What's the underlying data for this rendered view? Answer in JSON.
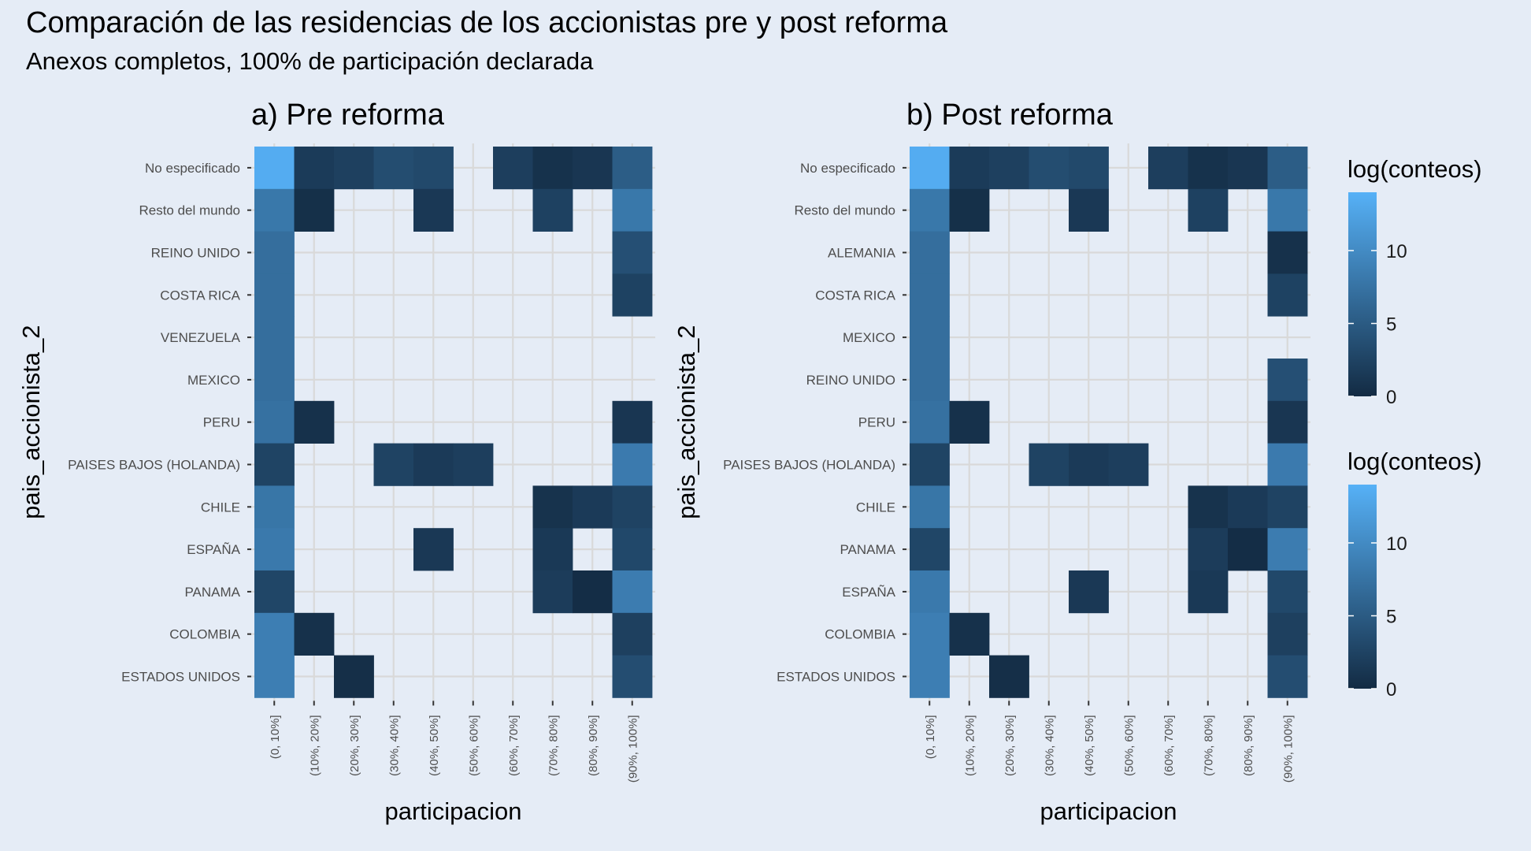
{
  "title": "Comparación de las residencias de los accionistas pre y post reforma",
  "subtitle": "Anexos completos, 100% de participación declarada",
  "chart_data": [
    {
      "type": "heatmap",
      "title": "a) Pre reforma",
      "xlabel": "participacion",
      "ylabel": "pais_accionista_2",
      "x": [
        "(0, 10%]",
        "(10%, 20%]",
        "(20%, 30%]",
        "(30%, 40%]",
        "(40%, 50%]",
        "(50%, 60%]",
        "(60%, 70%]",
        "(70%, 80%]",
        "(80%, 90%]",
        "(90%, 100%]"
      ],
      "y": [
        "No especificado",
        "Resto del mundo",
        "REINO UNIDO",
        "COSTA RICA",
        "VENEZUELA",
        "MEXICO",
        "PERU",
        "PAISES BAJOS (HOLANDA)",
        "CHILE",
        "ESPAÑA",
        "PANAMA",
        "COLOMBIA",
        "ESTADOS UNIDOS"
      ],
      "values": [
        [
          13.5,
          1.7,
          2.2,
          3.5,
          3.1,
          null,
          2.0,
          0.7,
          1.2,
          5.2
        ],
        [
          8.0,
          0.5,
          null,
          null,
          1.4,
          null,
          null,
          2.3,
          null,
          8.0
        ],
        [
          7.0,
          null,
          null,
          null,
          null,
          null,
          null,
          null,
          null,
          3.8
        ],
        [
          7.0,
          null,
          null,
          null,
          null,
          null,
          null,
          null,
          null,
          2.4
        ],
        [
          7.0,
          null,
          null,
          null,
          null,
          null,
          null,
          null,
          null,
          null
        ],
        [
          7.0,
          null,
          null,
          null,
          null,
          null,
          null,
          null,
          null,
          null
        ],
        [
          7.3,
          0.6,
          null,
          null,
          null,
          null,
          null,
          null,
          null,
          1.2
        ],
        [
          2.6,
          null,
          null,
          2.5,
          1.6,
          2.0,
          null,
          null,
          null,
          8.3
        ],
        [
          7.8,
          null,
          null,
          null,
          null,
          null,
          null,
          0.8,
          1.6,
          2.5
        ],
        [
          8.2,
          null,
          null,
          null,
          1.4,
          null,
          null,
          1.5,
          null,
          3.0
        ],
        [
          2.8,
          null,
          null,
          null,
          null,
          null,
          null,
          1.8,
          0.2,
          8.5
        ],
        [
          8.7,
          0.6,
          null,
          null,
          null,
          null,
          null,
          null,
          null,
          2.2
        ],
        [
          8.7,
          null,
          0.4,
          null,
          null,
          null,
          null,
          null,
          null,
          3.6
        ]
      ],
      "colorbar": {
        "label": "log(conteos)",
        "ticks": [
          0,
          5,
          10
        ],
        "range": [
          0,
          14
        ]
      }
    },
    {
      "type": "heatmap",
      "title": "b) Post reforma",
      "xlabel": "participacion",
      "ylabel": "pais_accionista_2",
      "x": [
        "(0, 10%]",
        "(10%, 20%]",
        "(20%, 30%]",
        "(30%, 40%]",
        "(40%, 50%]",
        "(50%, 60%]",
        "(60%, 70%]",
        "(70%, 80%]",
        "(80%, 90%]",
        "(90%, 100%]"
      ],
      "y": [
        "No especificado",
        "Resto del mundo",
        "ALEMANIA",
        "COSTA RICA",
        "MEXICO",
        "REINO UNIDO",
        "PERU",
        "PAISES BAJOS (HOLANDA)",
        "CHILE",
        "PANAMA",
        "ESPAÑA",
        "COLOMBIA",
        "ESTADOS UNIDOS"
      ],
      "values": [
        [
          13.5,
          1.7,
          2.2,
          3.5,
          3.1,
          null,
          2.0,
          0.7,
          1.2,
          5.2
        ],
        [
          8.0,
          0.5,
          null,
          null,
          1.4,
          null,
          null,
          2.3,
          null,
          8.0
        ],
        [
          7.0,
          null,
          null,
          null,
          null,
          null,
          null,
          null,
          null,
          0.6
        ],
        [
          7.0,
          null,
          null,
          null,
          null,
          null,
          null,
          null,
          null,
          2.4
        ],
        [
          7.0,
          null,
          null,
          null,
          null,
          null,
          null,
          null,
          null,
          null
        ],
        [
          7.0,
          null,
          null,
          null,
          null,
          null,
          null,
          null,
          null,
          3.8
        ],
        [
          7.3,
          0.6,
          null,
          null,
          null,
          null,
          null,
          null,
          null,
          1.2
        ],
        [
          2.6,
          null,
          null,
          2.5,
          1.6,
          2.0,
          null,
          null,
          null,
          8.3
        ],
        [
          7.8,
          null,
          null,
          null,
          null,
          null,
          null,
          0.8,
          1.6,
          2.5
        ],
        [
          2.8,
          null,
          null,
          null,
          null,
          null,
          null,
          1.8,
          0.2,
          8.5
        ],
        [
          8.2,
          null,
          null,
          null,
          1.4,
          null,
          null,
          1.5,
          null,
          3.0
        ],
        [
          8.7,
          0.6,
          null,
          null,
          null,
          null,
          null,
          null,
          null,
          2.2
        ],
        [
          8.7,
          null,
          0.4,
          null,
          null,
          null,
          null,
          null,
          null,
          3.6
        ]
      ],
      "colorbar": {
        "label": "log(conteos)",
        "ticks": [
          0,
          5,
          10
        ],
        "range": [
          0,
          14
        ]
      }
    }
  ],
  "colors": {
    "background": "#e5ecf6",
    "panel": "#e5ecf6",
    "grid": "#d9d9d9",
    "low": "#132b43",
    "high": "#56b1f7",
    "axis_text": "#4d4d4d"
  }
}
